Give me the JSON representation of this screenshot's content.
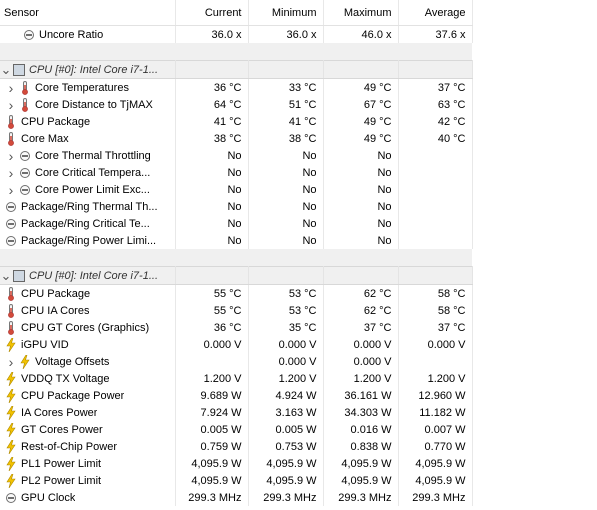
{
  "header": {
    "sensor": "Sensor",
    "current": "Current",
    "minimum": "Minimum",
    "maximum": "Maximum",
    "average": "Average"
  },
  "rows": [
    {
      "type": "row",
      "indent": 1,
      "expander": false,
      "icon": "clock-icon",
      "name": "Uncore Ratio",
      "cur": "36.0 x",
      "min": "36.0 x",
      "max": "46.0 x",
      "avg": "37.6 x"
    },
    {
      "type": "gap"
    },
    {
      "type": "group",
      "expander": true,
      "name": "CPU [#0]: Intel Core i7-1..."
    },
    {
      "type": "row",
      "indent": 1,
      "expander": true,
      "icon": "thermometer-icon",
      "name": "Core Temperatures",
      "cur": "36 °C",
      "min": "33 °C",
      "max": "49 °C",
      "avg": "37 °C"
    },
    {
      "type": "row",
      "indent": 1,
      "expander": true,
      "icon": "thermometer-icon",
      "name": "Core Distance to TjMAX",
      "cur": "64 °C",
      "min": "51 °C",
      "max": "67 °C",
      "avg": "63 °C"
    },
    {
      "type": "row",
      "indent": 0,
      "expander": false,
      "icon": "thermometer-icon",
      "name": "CPU Package",
      "cur": "41 °C",
      "min": "41 °C",
      "max": "49 °C",
      "avg": "42 °C"
    },
    {
      "type": "row",
      "indent": 0,
      "expander": false,
      "icon": "thermometer-icon",
      "name": "Core Max",
      "cur": "38 °C",
      "min": "38 °C",
      "max": "49 °C",
      "avg": "40 °C"
    },
    {
      "type": "row",
      "indent": 1,
      "expander": true,
      "icon": "clock-icon",
      "name": "Core Thermal Throttling",
      "cur": "No",
      "min": "No",
      "max": "No",
      "avg": ""
    },
    {
      "type": "row",
      "indent": 1,
      "expander": true,
      "icon": "clock-icon",
      "name": "Core Critical Tempera...",
      "cur": "No",
      "min": "No",
      "max": "No",
      "avg": ""
    },
    {
      "type": "row",
      "indent": 1,
      "expander": true,
      "icon": "clock-icon",
      "name": "Core Power Limit Exc...",
      "cur": "No",
      "min": "No",
      "max": "No",
      "avg": ""
    },
    {
      "type": "row",
      "indent": 0,
      "expander": false,
      "icon": "clock-icon",
      "name": "Package/Ring Thermal Th...",
      "cur": "No",
      "min": "No",
      "max": "No",
      "avg": ""
    },
    {
      "type": "row",
      "indent": 0,
      "expander": false,
      "icon": "clock-icon",
      "name": "Package/Ring Critical Te...",
      "cur": "No",
      "min": "No",
      "max": "No",
      "avg": ""
    },
    {
      "type": "row",
      "indent": 0,
      "expander": false,
      "icon": "clock-icon",
      "name": "Package/Ring Power Limi...",
      "cur": "No",
      "min": "No",
      "max": "No",
      "avg": ""
    },
    {
      "type": "gap"
    },
    {
      "type": "group",
      "expander": true,
      "name": "CPU [#0]: Intel Core i7-1..."
    },
    {
      "type": "row",
      "indent": 0,
      "expander": false,
      "icon": "thermometer-icon",
      "name": "CPU Package",
      "cur": "55 °C",
      "min": "53 °C",
      "max": "62 °C",
      "avg": "58 °C"
    },
    {
      "type": "row",
      "indent": 0,
      "expander": false,
      "icon": "thermometer-icon",
      "name": "CPU IA Cores",
      "cur": "55 °C",
      "min": "53 °C",
      "max": "62 °C",
      "avg": "58 °C"
    },
    {
      "type": "row",
      "indent": 0,
      "expander": false,
      "icon": "thermometer-icon",
      "name": "CPU GT Cores (Graphics)",
      "cur": "36 °C",
      "min": "35 °C",
      "max": "37 °C",
      "avg": "37 °C"
    },
    {
      "type": "row",
      "indent": 0,
      "expander": false,
      "icon": "lightning-icon",
      "name": "iGPU VID",
      "cur": "0.000 V",
      "min": "0.000 V",
      "max": "0.000 V",
      "avg": "0.000 V"
    },
    {
      "type": "row",
      "indent": 1,
      "expander": true,
      "icon": "lightning-icon",
      "name": "Voltage Offsets",
      "cur": "",
      "min": "0.000 V",
      "max": "0.000 V",
      "avg": ""
    },
    {
      "type": "row",
      "indent": 0,
      "expander": false,
      "icon": "lightning-icon",
      "name": "VDDQ TX Voltage",
      "cur": "1.200 V",
      "min": "1.200 V",
      "max": "1.200 V",
      "avg": "1.200 V"
    },
    {
      "type": "row",
      "indent": 0,
      "expander": false,
      "icon": "lightning-icon",
      "name": "CPU Package Power",
      "cur": "9.689 W",
      "min": "4.924 W",
      "max": "36.161 W",
      "avg": "12.960 W"
    },
    {
      "type": "row",
      "indent": 0,
      "expander": false,
      "icon": "lightning-icon",
      "name": "IA Cores Power",
      "cur": "7.924 W",
      "min": "3.163 W",
      "max": "34.303 W",
      "avg": "11.182 W"
    },
    {
      "type": "row",
      "indent": 0,
      "expander": false,
      "icon": "lightning-icon",
      "name": "GT Cores Power",
      "cur": "0.005 W",
      "min": "0.005 W",
      "max": "0.016 W",
      "avg": "0.007 W"
    },
    {
      "type": "row",
      "indent": 0,
      "expander": false,
      "icon": "lightning-icon",
      "name": "Rest-of-Chip Power",
      "cur": "0.759 W",
      "min": "0.753 W",
      "max": "0.838 W",
      "avg": "0.770 W"
    },
    {
      "type": "row",
      "indent": 0,
      "expander": false,
      "icon": "lightning-icon",
      "name": "PL1 Power Limit",
      "cur": "4,095.9 W",
      "min": "4,095.9 W",
      "max": "4,095.9 W",
      "avg": "4,095.9 W"
    },
    {
      "type": "row",
      "indent": 0,
      "expander": false,
      "icon": "lightning-icon",
      "name": "PL2 Power Limit",
      "cur": "4,095.9 W",
      "min": "4,095.9 W",
      "max": "4,095.9 W",
      "avg": "4,095.9 W"
    },
    {
      "type": "row",
      "indent": 0,
      "expander": false,
      "icon": "clock-icon",
      "name": "GPU Clock",
      "cur": "299.3 MHz",
      "min": "299.3 MHz",
      "max": "299.3 MHz",
      "avg": "299.3 MHz"
    }
  ]
}
